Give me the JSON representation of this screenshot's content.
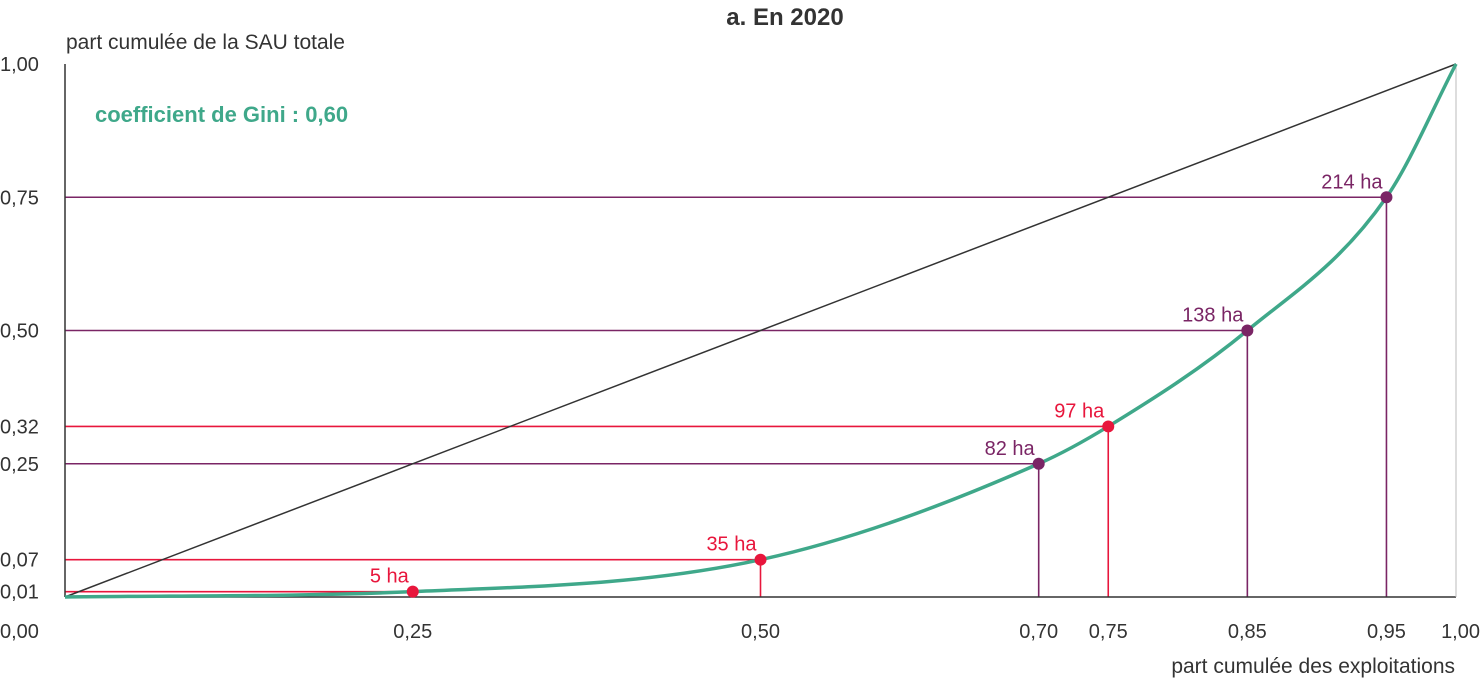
{
  "chart_data": {
    "type": "line",
    "title": "a. En 2020",
    "ylabel": "part cumulée de la SAU totale",
    "xlabel": "part cumulée des exploitations",
    "annotation": "coefficient de Gini : 0,60",
    "xlim": [
      0,
      1
    ],
    "ylim": [
      0,
      1
    ],
    "x_ticks": [
      {
        "v": 0,
        "label": "0,00"
      },
      {
        "v": 0.25,
        "label": "0,25"
      },
      {
        "v": 0.5,
        "label": "0,50"
      },
      {
        "v": 0.7,
        "label": "0,70"
      },
      {
        "v": 0.75,
        "label": "0,75"
      },
      {
        "v": 0.85,
        "label": "0,85"
      },
      {
        "v": 0.95,
        "label": "0,95"
      },
      {
        "v": 1,
        "label": "1,00"
      }
    ],
    "y_ticks": [
      {
        "v": 0.01,
        "label": "0,01"
      },
      {
        "v": 0.07,
        "label": "0,07"
      },
      {
        "v": 0.25,
        "label": "0,25"
      },
      {
        "v": 0.32,
        "label": "0,32"
      },
      {
        "v": 0.5,
        "label": "0,50"
      },
      {
        "v": 0.75,
        "label": "0,75"
      },
      {
        "v": 1,
        "label": "1,00"
      }
    ],
    "lorenz_curve": {
      "color": "#3fa88a",
      "points": [
        [
          0,
          0
        ],
        [
          0.25,
          0.01
        ],
        [
          0.5,
          0.07
        ],
        [
          0.7,
          0.25
        ],
        [
          0.75,
          0.32
        ],
        [
          0.85,
          0.5
        ],
        [
          0.95,
          0.75
        ],
        [
          1,
          1
        ]
      ]
    },
    "equality_line": {
      "color": "#333333",
      "points": [
        [
          0,
          0
        ],
        [
          1,
          1
        ]
      ]
    },
    "marked_points": [
      {
        "x": 0.25,
        "y": 0.01,
        "label": "5 ha",
        "color": "#e8163c"
      },
      {
        "x": 0.5,
        "y": 0.07,
        "label": "35 ha",
        "color": "#e8163c"
      },
      {
        "x": 0.7,
        "y": 0.25,
        "label": "82 ha",
        "color": "#7a2565"
      },
      {
        "x": 0.75,
        "y": 0.32,
        "label": "97 ha",
        "color": "#e8163c"
      },
      {
        "x": 0.85,
        "y": 0.5,
        "label": "138 ha",
        "color": "#7a2565"
      },
      {
        "x": 0.95,
        "y": 0.75,
        "label": "214 ha",
        "color": "#7a2565"
      }
    ],
    "colors": {
      "curve": "#3fa88a",
      "red": "#e8163c",
      "purple": "#7a2565",
      "axis": "#333333",
      "text": "#333333"
    }
  }
}
